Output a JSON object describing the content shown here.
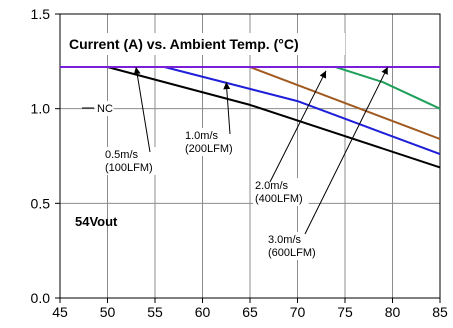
{
  "chart_data": {
    "type": "line",
    "title": "Current (A) vs. Ambient Temp. (°C)",
    "subtitle": "54Vout",
    "xlabel": "",
    "ylabel": "",
    "xlim": [
      45,
      85
    ],
    "ylim": [
      0.0,
      1.5
    ],
    "x_ticks": [
      45,
      50,
      55,
      60,
      65,
      70,
      75,
      80,
      85
    ],
    "y_ticks": [
      {
        "value": 0.0,
        "label": "0.0"
      },
      {
        "value": 0.5,
        "label": "0.5"
      },
      {
        "value": 1.0,
        "label": "1.0"
      },
      {
        "value": 1.5,
        "label": "1.5"
      }
    ],
    "grid": "vertical and horizontal gray gridlines",
    "legend": "none; curves labelled with arrows",
    "series": [
      {
        "name": "NC",
        "color": "#000000",
        "points": [
          [
            45,
            1.22
          ],
          [
            50,
            1.22
          ],
          [
            65,
            1.02
          ],
          [
            85,
            0.69
          ]
        ]
      },
      {
        "name": "0.5m/s (100LFM)",
        "color": "#1f1fd9",
        "points": [
          [
            45,
            1.22
          ],
          [
            56,
            1.22
          ],
          [
            70,
            1.04
          ],
          [
            85,
            0.76
          ]
        ]
      },
      {
        "name": "1.0m/s (200LFM)",
        "color": "#a05a1f",
        "points": [
          [
            45,
            1.22
          ],
          [
            65,
            1.22
          ],
          [
            85,
            0.84
          ]
        ]
      },
      {
        "name": "2.0m/s (400LFM)",
        "color": "#1fa05a",
        "points": [
          [
            45,
            1.22
          ],
          [
            74,
            1.22
          ],
          [
            79,
            1.14
          ],
          [
            85,
            1.0
          ]
        ]
      },
      {
        "name": "3.0m/s (600LFM)",
        "color": "#7a1fd9",
        "points": [
          [
            45,
            1.22
          ],
          [
            85,
            1.22
          ]
        ]
      }
    ],
    "annotations": [
      {
        "lines": [
          "NC"
        ],
        "target": [
          48,
          1.0
        ]
      },
      {
        "lines": [
          "0.5m/s",
          "(100LFM)"
        ],
        "target": [
          53,
          1.22
        ]
      },
      {
        "lines": [
          "1.0m/s",
          "(200LFM)"
        ],
        "target": [
          62.5,
          1.14
        ]
      },
      {
        "lines": [
          "2.0m/s",
          "(400LFM)"
        ],
        "target": [
          73,
          1.2
        ]
      },
      {
        "lines": [
          "3.0m/s",
          "(600LFM)"
        ],
        "target": [
          79.5,
          1.22
        ]
      }
    ]
  }
}
